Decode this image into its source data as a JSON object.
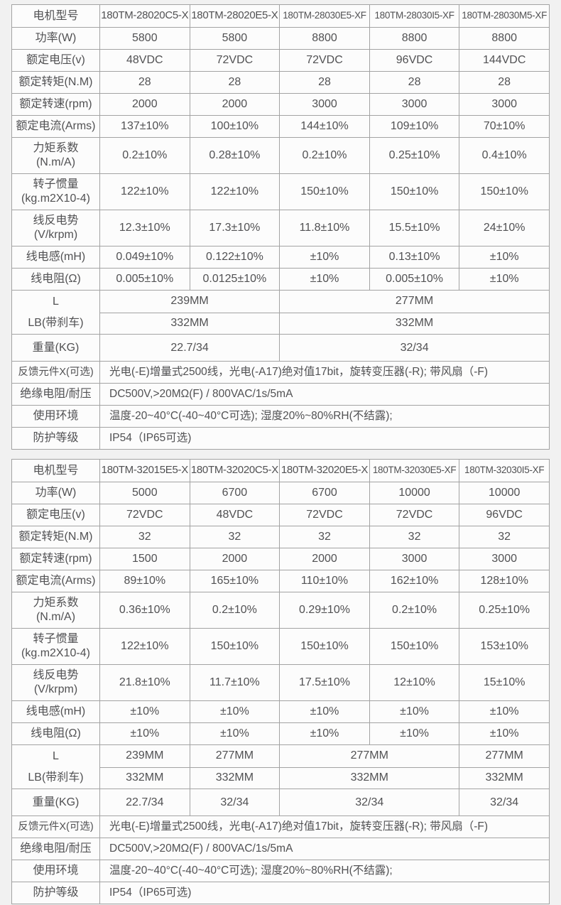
{
  "colors": {
    "page_bg": "#f1f1f1",
    "cell_bg": "#fcfcfc",
    "border": "#a3a3a3",
    "text": "#515153"
  },
  "t1": {
    "header_label": "电机型号",
    "models": [
      "180TM-28020C5-X",
      "180TM-28020E5-X",
      "180TM-28030E5-XF",
      "180TM-28030I5-XF",
      "180TM-28030M5-XF"
    ],
    "rows": [
      {
        "label": "功率(W)",
        "values": [
          "5800",
          "5800",
          "8800",
          "8800",
          "8800"
        ]
      },
      {
        "label": "额定电压(v)",
        "values": [
          "48VDC",
          "72VDC",
          "72VDC",
          "96VDC",
          "144VDC"
        ]
      },
      {
        "label": "额定转矩(N.M)",
        "values": [
          "28",
          "28",
          "28",
          "28",
          "28"
        ]
      },
      {
        "label": "额定转速(rpm)",
        "values": [
          "2000",
          "2000",
          "3000",
          "3000",
          "3000"
        ]
      },
      {
        "label": "额定电流(Arms)",
        "values": [
          "137±10%",
          "100±10%",
          "144±10%",
          "109±10%",
          "70±10%"
        ]
      },
      {
        "label": "力矩系数",
        "label2": "(N.m/A)",
        "values": [
          "0.2±10%",
          "0.28±10%",
          "0.2±10%",
          "0.25±10%",
          "0.4±10%"
        ]
      },
      {
        "label": "转子惯量",
        "label2": "(kg.m2X10-4)",
        "values": [
          "122±10%",
          "122±10%",
          "150±10%",
          "150±10%",
          "150±10%"
        ]
      },
      {
        "label": "线反电势",
        "label2": "(V/krpm)",
        "values": [
          "12.3±10%",
          "17.3±10%",
          "11.8±10%",
          "15.5±10%",
          "24±10%"
        ]
      },
      {
        "label": "线电感(mH)",
        "values": [
          "0.049±10%",
          "0.122±10%",
          "±10%",
          "0.13±10%",
          "±10%"
        ]
      },
      {
        "label": "线电阻(Ω)",
        "values": [
          "0.005±10%",
          "0.0125±10%",
          "±10%",
          "0.005±10%",
          "±10%"
        ]
      }
    ],
    "l_label": "L",
    "lb_label": "LB(带刹车)",
    "weight_label": "重量(KG)",
    "l_values": [
      "239MM",
      "277MM"
    ],
    "lb_values": [
      "332MM",
      "332MM"
    ],
    "weight_values": [
      "22.7/34",
      "32/34"
    ],
    "info": [
      {
        "label": "反馈元件X(可选)",
        "value": "光电(-E)增量式2500线，光电(-A17)绝对值17bit，旋转变压器(-R); 带风扇（-F)"
      },
      {
        "label": "绝缘电阻/耐压",
        "value": "DC500V,>20MΩ(F) / 800VAC/1s/5mA"
      },
      {
        "label": "使用环境",
        "value": "温度-20~40°C(-40~40°C可选); 湿度20%~80%RH(不结露);"
      },
      {
        "label": "防护等级",
        "value": "IP54（IP65可选)"
      }
    ]
  },
  "t2": {
    "header_label": "电机型号",
    "models": [
      "180TM-32015E5-X",
      "180TM-32020C5-X",
      "180TM-32020E5-X",
      "180TM-32030E5-XF",
      "180TM-32030I5-XF"
    ],
    "rows": [
      {
        "label": "功率(W)",
        "values": [
          "5000",
          "6700",
          "6700",
          "10000",
          "10000"
        ]
      },
      {
        "label": "额定电压(v)",
        "values": [
          "72VDC",
          "48VDC",
          "72VDC",
          "72VDC",
          "96VDC"
        ]
      },
      {
        "label": "额定转矩(N.M)",
        "values": [
          "32",
          "32",
          "32",
          "32",
          "32"
        ]
      },
      {
        "label": "额定转速(rpm)",
        "values": [
          "1500",
          "2000",
          "2000",
          "3000",
          "3000"
        ]
      },
      {
        "label": "额定电流(Arms)",
        "values": [
          "89±10%",
          "165±10%",
          "110±10%",
          "162±10%",
          "128±10%"
        ]
      },
      {
        "label": "力矩系数",
        "label2": "(N.m/A)",
        "values": [
          "0.36±10%",
          "0.2±10%",
          "0.29±10%",
          "0.2±10%",
          "0.25±10%"
        ]
      },
      {
        "label": "转子惯量",
        "label2": "(kg.m2X10-4)",
        "values": [
          "122±10%",
          "150±10%",
          "150±10%",
          "150±10%",
          "153±10%"
        ]
      },
      {
        "label": "线反电势",
        "label2": "(V/krpm)",
        "values": [
          "21.8±10%",
          "11.7±10%",
          "17.5±10%",
          "12±10%",
          "15±10%"
        ]
      },
      {
        "label": "线电感(mH)",
        "values": [
          "±10%",
          "±10%",
          "±10%",
          "±10%",
          "±10%"
        ]
      },
      {
        "label": "线电阻(Ω)",
        "values": [
          "±10%",
          "±10%",
          "±10%",
          "±10%",
          "±10%"
        ]
      }
    ],
    "l_label": "L",
    "lb_label": "LB(带刹车)",
    "weight_label": "重量(KG)",
    "l_values": [
      "239MM",
      "277MM",
      "277MM",
      "277MM"
    ],
    "lb_values": [
      "332MM",
      "332MM",
      "332MM",
      "332MM"
    ],
    "weight_values": [
      "22.7/34",
      "32/34",
      "32/34",
      "32/34"
    ],
    "info": [
      {
        "label": "反馈元件X(可选)",
        "value": "光电(-E)增量式2500线，光电(-A17)绝对值17bit，旋转变压器(-R); 带风扇（-F)"
      },
      {
        "label": "绝缘电阻/耐压",
        "value": "DC500V,>20MΩ(F) / 800VAC/1s/5mA"
      },
      {
        "label": "使用环境",
        "value": "温度-20~40°C(-40~40°C可选); 湿度20%~80%RH(不结露);"
      },
      {
        "label": "防护等级",
        "value": "IP54（IP65可选)"
      }
    ]
  }
}
